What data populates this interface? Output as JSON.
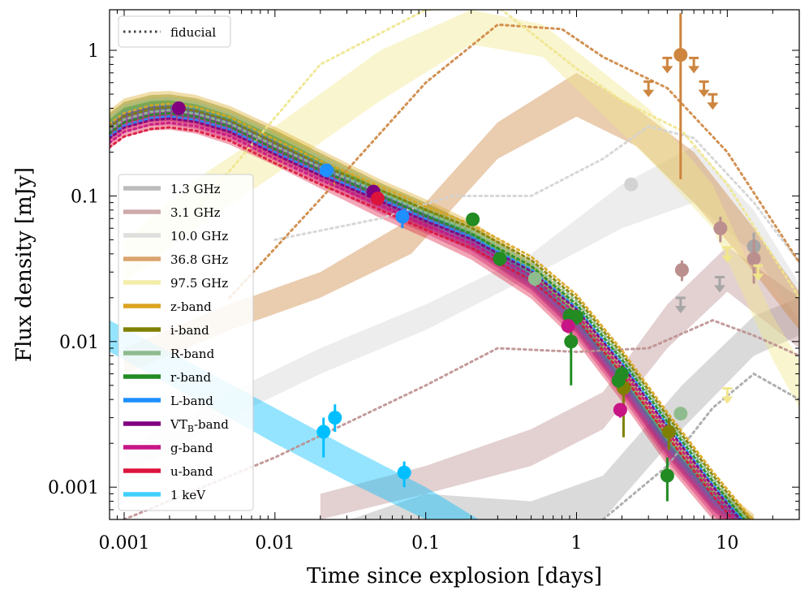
{
  "chart_data": {
    "type": "line",
    "xlabel": "Time since explosion [days]",
    "ylabel": "Flux density [mJy]",
    "xscale": "log",
    "yscale": "log",
    "xlim": [
      0.0008,
      30
    ],
    "ylim": [
      0.0006,
      1.9
    ],
    "x_ticks": [
      0.001,
      0.01,
      0.1,
      1,
      10
    ],
    "x_tick_labels": [
      "0.001",
      "0.01",
      "0.1",
      "1",
      "10"
    ],
    "y_ticks": [
      0.001,
      0.01,
      0.1,
      1
    ],
    "y_tick_labels": [
      "0.001",
      "0.01",
      "0.1",
      "1"
    ],
    "legend_top": {
      "label": "fiducial",
      "style": "dotted",
      "color": "#444444",
      "placement": "top-left"
    },
    "legend_placement": "center-left",
    "series": [
      {
        "name": "1.3 GHz",
        "color": "#a6a6a6",
        "band": {
          "x": [
            0.01,
            0.1,
            0.5,
            1.5,
            5,
            15,
            30
          ],
          "lo": [
            0.00025,
            0.0005,
            0.00045,
            0.0006,
            0.0025,
            0.008,
            0.011
          ],
          "hi": [
            0.0004,
            0.0009,
            0.0008,
            0.0012,
            0.005,
            0.015,
            0.02
          ]
        },
        "fiducial": {
          "x": [
            0.1,
            0.5,
            1.5,
            4,
            8,
            15,
            30
          ],
          "y": [
            0.00025,
            0.00035,
            0.0006,
            0.0014,
            0.0035,
            0.006,
            0.004
          ]
        },
        "points": [
          {
            "x": 15,
            "y": 0.045,
            "ylo": 0.03,
            "yhi": 0.056
          },
          {
            "x": 4.9,
            "y": 0.018,
            "upper": true
          },
          {
            "x": 8.9,
            "y": 0.025,
            "upper": true
          }
        ]
      },
      {
        "name": "3.1 GHz",
        "color": "#bc8f8f",
        "band": {
          "x": [
            0.02,
            0.1,
            0.5,
            1.5,
            4,
            10,
            30
          ],
          "lo": [
            0.0006,
            0.0009,
            0.0014,
            0.0025,
            0.009,
            0.022,
            0.009
          ],
          "hi": [
            0.0009,
            0.0014,
            0.0025,
            0.0045,
            0.018,
            0.045,
            0.02
          ]
        },
        "fiducial": {
          "x": [
            0.001,
            0.01,
            0.1,
            0.3,
            1,
            3,
            8,
            15,
            30
          ],
          "y": [
            0.0006,
            0.0016,
            0.005,
            0.009,
            0.0085,
            0.009,
            0.014,
            0.011,
            0.008
          ]
        },
        "points": [
          {
            "x": 9,
            "y": 0.06,
            "ylo": 0.048,
            "yhi": 0.072
          },
          {
            "x": 5,
            "y": 0.031,
            "ylo": 0.026,
            "yhi": 0.036
          },
          {
            "x": 15,
            "y": 0.037,
            "ylo": 0.025,
            "yhi": 0.05
          }
        ]
      },
      {
        "name": "10.0 GHz",
        "color": "#d3d3d3",
        "band": {
          "x": [
            0.001,
            0.005,
            0.02,
            0.1,
            0.5,
            2,
            6,
            15,
            30
          ],
          "lo": [
            0.0012,
            0.003,
            0.006,
            0.012,
            0.028,
            0.06,
            0.09,
            0.04,
            0.014
          ],
          "hi": [
            0.0018,
            0.0045,
            0.009,
            0.018,
            0.04,
            0.12,
            0.22,
            0.08,
            0.025
          ]
        },
        "fiducial": {
          "x": [
            0.01,
            0.05,
            0.15,
            0.5,
            1.5,
            3,
            6,
            15,
            30
          ],
          "y": [
            0.05,
            0.07,
            0.1,
            0.1,
            0.18,
            0.3,
            0.25,
            0.09,
            0.035
          ]
        },
        "points": [
          {
            "x": 2.3,
            "y": 0.12,
            "ylo": 0.11,
            "yhi": 0.13
          }
        ]
      },
      {
        "name": "36.8 GHz",
        "color": "#cd853f",
        "band": {
          "x": [
            0.001,
            0.005,
            0.02,
            0.08,
            0.3,
            1,
            2.5,
            6,
            15,
            30
          ],
          "lo": [
            0.006,
            0.012,
            0.02,
            0.04,
            0.18,
            0.35,
            0.22,
            0.09,
            0.03,
            0.012
          ],
          "hi": [
            0.009,
            0.018,
            0.03,
            0.07,
            0.32,
            0.7,
            0.4,
            0.2,
            0.06,
            0.022
          ]
        },
        "fiducial": {
          "x": [
            0.005,
            0.03,
            0.1,
            0.3,
            0.8,
            1.5,
            4,
            10,
            30
          ],
          "y": [
            0.02,
            0.15,
            0.6,
            1.5,
            1.4,
            0.9,
            0.55,
            0.2,
            0.035
          ]
        },
        "points": [
          {
            "x": 4.9,
            "y": 0.93,
            "ylo": 0.13,
            "yhi": 1.8
          },
          {
            "x": 3,
            "y": 0.55,
            "upper": true
          },
          {
            "x": 4,
            "y": 0.8,
            "upper": true
          },
          {
            "x": 6,
            "y": 0.8,
            "upper": true
          },
          {
            "x": 7,
            "y": 0.55,
            "upper": true
          },
          {
            "x": 8,
            "y": 0.45,
            "upper": true
          }
        ]
      },
      {
        "name": "97.5 GHz",
        "color": "#f0e68c",
        "band": {
          "x": [
            0.001,
            0.003,
            0.01,
            0.05,
            0.2,
            0.6,
            1.2,
            3,
            8,
            20,
            30
          ],
          "lo": [
            0.025,
            0.06,
            0.14,
            0.45,
            1.1,
            0.9,
            0.45,
            0.18,
            0.06,
            0.0075,
            0.0035
          ],
          "hi": [
            0.05,
            0.13,
            0.3,
            1.0,
            1.9,
            1.5,
            0.85,
            0.4,
            0.12,
            0.015,
            0.0075
          ]
        },
        "fiducial": {
          "x": [
            0.003,
            0.02,
            0.1,
            0.3,
            1,
            2,
            5,
            10,
            30
          ],
          "y": [
            0.08,
            0.8,
            1.9,
            2.0,
            0.75,
            0.45,
            0.28,
            0.12,
            0.02
          ]
        },
        "points": [
          {
            "x": 10,
            "y": 0.04,
            "upper": true
          },
          {
            "x": 16,
            "y": 0.03,
            "upper": true
          },
          {
            "x": 10,
            "y": 0.0043,
            "upper": true
          }
        ]
      },
      {
        "name": "z-band",
        "color": "#daa520",
        "band_offset": 1.16,
        "shift": 1.16,
        "points": []
      },
      {
        "name": "i-band",
        "color": "#808000",
        "band_offset": 1.1,
        "shift": 1.1,
        "points": [
          {
            "x": 2.05,
            "y": 0.0048,
            "ylo": 0.0022,
            "yhi": 0.006
          },
          {
            "x": 4.1,
            "y": 0.0024,
            "ylo": 0.0018,
            "yhi": 0.003
          }
        ]
      },
      {
        "name": "R-band",
        "color": "#8fbc8f",
        "band_offset": 1.05,
        "shift": 1.05,
        "points": [
          {
            "x": 0.53,
            "y": 0.027,
            "ylo": 0.024,
            "yhi": 0.03
          },
          {
            "x": 4.9,
            "y": 0.0032,
            "ylo": 0.0029,
            "yhi": 0.0035
          }
        ]
      },
      {
        "name": "r-band",
        "color": "#228b22",
        "band_offset": 1.0,
        "shift": 1.0,
        "points": [
          {
            "x": 0.205,
            "y": 0.069,
            "ylo": 0.064,
            "yhi": 0.074
          },
          {
            "x": 0.31,
            "y": 0.037,
            "ylo": 0.033,
            "yhi": 0.041
          },
          {
            "x": 0.9,
            "y": 0.015,
            "ylo": 0.013,
            "yhi": 0.017
          },
          {
            "x": 1.0,
            "y": 0.0148,
            "ylo": 0.013,
            "yhi": 0.016
          },
          {
            "x": 0.92,
            "y": 0.01,
            "ylo": 0.005,
            "yhi": 0.013
          },
          {
            "x": 2.0,
            "y": 0.006,
            "ylo": 0.0052,
            "yhi": 0.0068
          },
          {
            "x": 1.9,
            "y": 0.0054,
            "ylo": 0.0048,
            "yhi": 0.006
          },
          {
            "x": 4.0,
            "y": 0.0012,
            "ylo": 0.0008,
            "yhi": 0.0016
          }
        ]
      },
      {
        "name": "L-band",
        "color": "#1e90ff",
        "band_offset": 0.95,
        "shift": 0.95,
        "points": [
          {
            "x": 0.022,
            "y": 0.15,
            "ylo": 0.14,
            "yhi": 0.16
          },
          {
            "x": 0.07,
            "y": 0.072,
            "ylo": 0.06,
            "yhi": 0.08
          }
        ]
      },
      {
        "name": "VT_B-band",
        "color": "#800080",
        "band_offset": 0.92,
        "shift": 0.92,
        "points": [
          {
            "x": 0.0023,
            "y": 0.4,
            "ylo": 0.38,
            "yhi": 0.42
          },
          {
            "x": 0.045,
            "y": 0.107,
            "ylo": 0.1,
            "yhi": 0.114
          }
        ]
      },
      {
        "name": "g-band",
        "color": "#c71585",
        "band_offset": 0.86,
        "shift": 0.86,
        "points": [
          {
            "x": 0.88,
            "y": 0.0128,
            "ylo": 0.012,
            "yhi": 0.014
          },
          {
            "x": 1.95,
            "y": 0.0034,
            "ylo": 0.003,
            "yhi": 0.0037
          }
        ]
      },
      {
        "name": "u-band",
        "color": "#dc143c",
        "band_offset": 0.8,
        "shift": 0.8,
        "points": [
          {
            "x": 0.048,
            "y": 0.096,
            "ylo": 0.09,
            "yhi": 0.102
          }
        ]
      },
      {
        "name": "1 keV",
        "color": "#00bfff",
        "band": {
          "x": [
            0.0008,
            0.003,
            0.01,
            0.03,
            0.1,
            0.3
          ],
          "lo": [
            0.0085,
            0.004,
            0.002,
            0.0011,
            0.0006,
            0.0003
          ],
          "hi": [
            0.014,
            0.0068,
            0.0035,
            0.0019,
            0.001,
            0.0005
          ]
        },
        "points": [
          {
            "x": 0.021,
            "y": 0.0024,
            "ylo": 0.0016,
            "yhi": 0.003
          },
          {
            "x": 0.025,
            "y": 0.003,
            "ylo": 0.0024,
            "yhi": 0.0037
          },
          {
            "x": 0.072,
            "y": 0.00126,
            "ylo": 0.001,
            "yhi": 0.0015
          }
        ]
      }
    ],
    "optical_base": {
      "x": [
        0.0008,
        0.001,
        0.0015,
        0.002,
        0.003,
        0.005,
        0.01,
        0.02,
        0.05,
        0.1,
        0.2,
        0.5,
        1,
        2,
        4,
        8,
        15
      ],
      "y": [
        0.3,
        0.36,
        0.4,
        0.405,
        0.38,
        0.32,
        0.23,
        0.16,
        0.1,
        0.073,
        0.052,
        0.028,
        0.014,
        0.0055,
        0.002,
        0.00085,
        0.0005
      ]
    },
    "optical_fiducial_base": {
      "x": [
        0.0008,
        0.001,
        0.0015,
        0.002,
        0.003,
        0.005,
        0.01,
        0.02,
        0.05,
        0.1,
        0.2,
        0.5,
        1,
        2,
        4,
        8,
        15
      ],
      "y": [
        0.27,
        0.32,
        0.36,
        0.37,
        0.35,
        0.3,
        0.21,
        0.15,
        0.1,
        0.073,
        0.055,
        0.033,
        0.018,
        0.0075,
        0.0028,
        0.0011,
        0.0005
      ]
    }
  }
}
